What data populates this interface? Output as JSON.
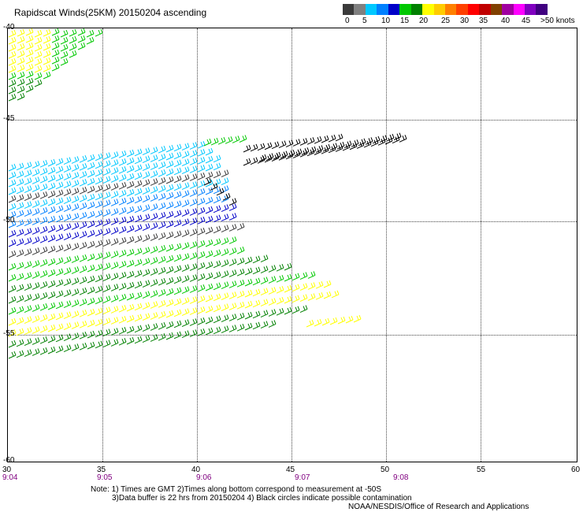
{
  "title": "Rapidscat Winds(25KM) 20150204 ascending",
  "color_scale": {
    "labels": [
      "0",
      "5",
      "10",
      "15",
      "20",
      "25",
      "30",
      "35",
      "40",
      "45",
      ">50 knots"
    ],
    "colors": [
      "#3a3a3a",
      "#808080",
      "#00c8ff",
      "#0080ff",
      "#0000c8",
      "#00c800",
      "#008000",
      "#ffff00",
      "#ffcc00",
      "#ff8000",
      "#ff4000",
      "#ff0000",
      "#c00000",
      "#804000",
      "#a000a0",
      "#ff00ff",
      "#8000c0",
      "#400080"
    ]
  },
  "latitudes": [
    "-40",
    "-45",
    "-50",
    "-55",
    "-60"
  ],
  "longitudes": [
    "30",
    "35",
    "40",
    "45",
    "50",
    "55",
    "60"
  ],
  "times": [
    "9:04",
    "9:05",
    "9:06",
    "9:07",
    "9:08"
  ],
  "notes": {
    "line1": "Note: 1) Times are GMT 2)Times along bottom correspond to measurement at -50S",
    "line2": "3)Data buffer is 22 hrs from 20150204 4) Black circles indicate possible contamination",
    "line3": "NOAA/NESDIS/Office of Research and Applications"
  }
}
